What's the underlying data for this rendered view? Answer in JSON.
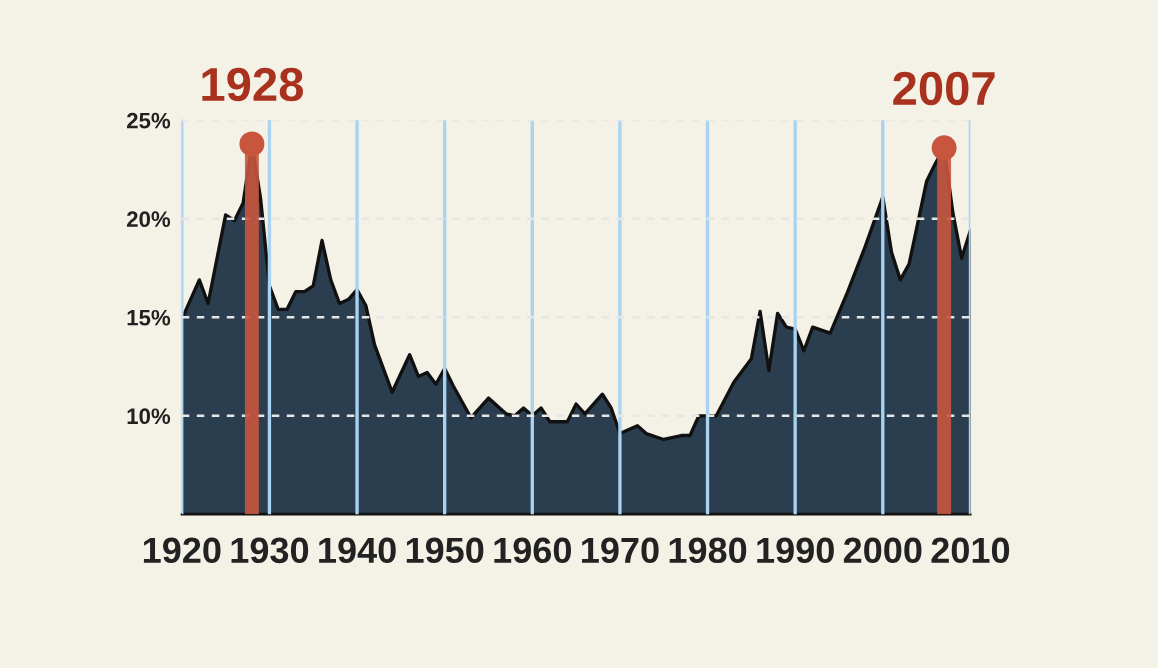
{
  "chart_data": {
    "type": "area",
    "x": [
      1920,
      1922,
      1923,
      1925,
      1926,
      1927,
      1928,
      1929,
      1930,
      1931,
      1932,
      1933,
      1934,
      1935,
      1936,
      1937,
      1938,
      1939,
      1940,
      1941,
      1942,
      1944,
      1946,
      1947,
      1948,
      1949,
      1950,
      1951,
      1953,
      1955,
      1957,
      1958,
      1959,
      1960,
      1961,
      1962,
      1964,
      1965,
      1966,
      1968,
      1969,
      1970,
      1972,
      1973,
      1975,
      1977,
      1978,
      1979,
      1981,
      1983,
      1985,
      1986,
      1987,
      1988,
      1989,
      1990,
      1991,
      1992,
      1994,
      1996,
      1998,
      2000,
      2001,
      2002,
      2003,
      2005,
      2006,
      2007,
      2008,
      2009,
      2010
    ],
    "series": [
      {
        "color": "#2b3e50",
        "values": [
          14.9,
          16.9,
          15.7,
          20.2,
          19.9,
          20.8,
          23.8,
          21.0,
          16.6,
          15.4,
          15.4,
          16.3,
          16.3,
          16.6,
          18.9,
          16.9,
          15.7,
          15.9,
          16.4,
          15.6,
          13.6,
          11.2,
          13.1,
          12.0,
          12.2,
          11.6,
          12.4,
          11.5,
          9.9,
          10.9,
          10.1,
          10.0,
          10.4,
          10.0,
          10.4,
          9.7,
          9.7,
          10.6,
          10.1,
          11.1,
          10.4,
          9.1,
          9.5,
          9.1,
          8.8,
          9.0,
          9.0,
          10.0,
          10.0,
          11.7,
          12.9,
          15.3,
          12.3,
          15.2,
          14.5,
          14.4,
          13.3,
          14.5,
          14.2,
          16.3,
          18.6,
          21.1,
          18.3,
          16.9,
          17.7,
          21.9,
          22.8,
          23.6,
          20.3,
          18.0,
          19.4
        ]
      }
    ],
    "xlim": [
      1920,
      2010
    ],
    "xticks": [
      1920,
      1930,
      1940,
      1950,
      1960,
      1970,
      1980,
      1990,
      2000,
      2010
    ],
    "ylim": [
      5,
      25
    ],
    "yticks": [
      {
        "value": 10,
        "label": "10%"
      },
      {
        "value": 15,
        "label": "15%"
      },
      {
        "value": 20,
        "label": "20%"
      },
      {
        "value": 25,
        "label": "25%"
      }
    ],
    "grid": true,
    "ref_lines": [
      {
        "axis": "x",
        "value": 1928,
        "label": "1928",
        "color": "#c8553d"
      },
      {
        "axis": "x",
        "value": 2007,
        "label": "2007",
        "color": "#c8553d"
      }
    ]
  }
}
